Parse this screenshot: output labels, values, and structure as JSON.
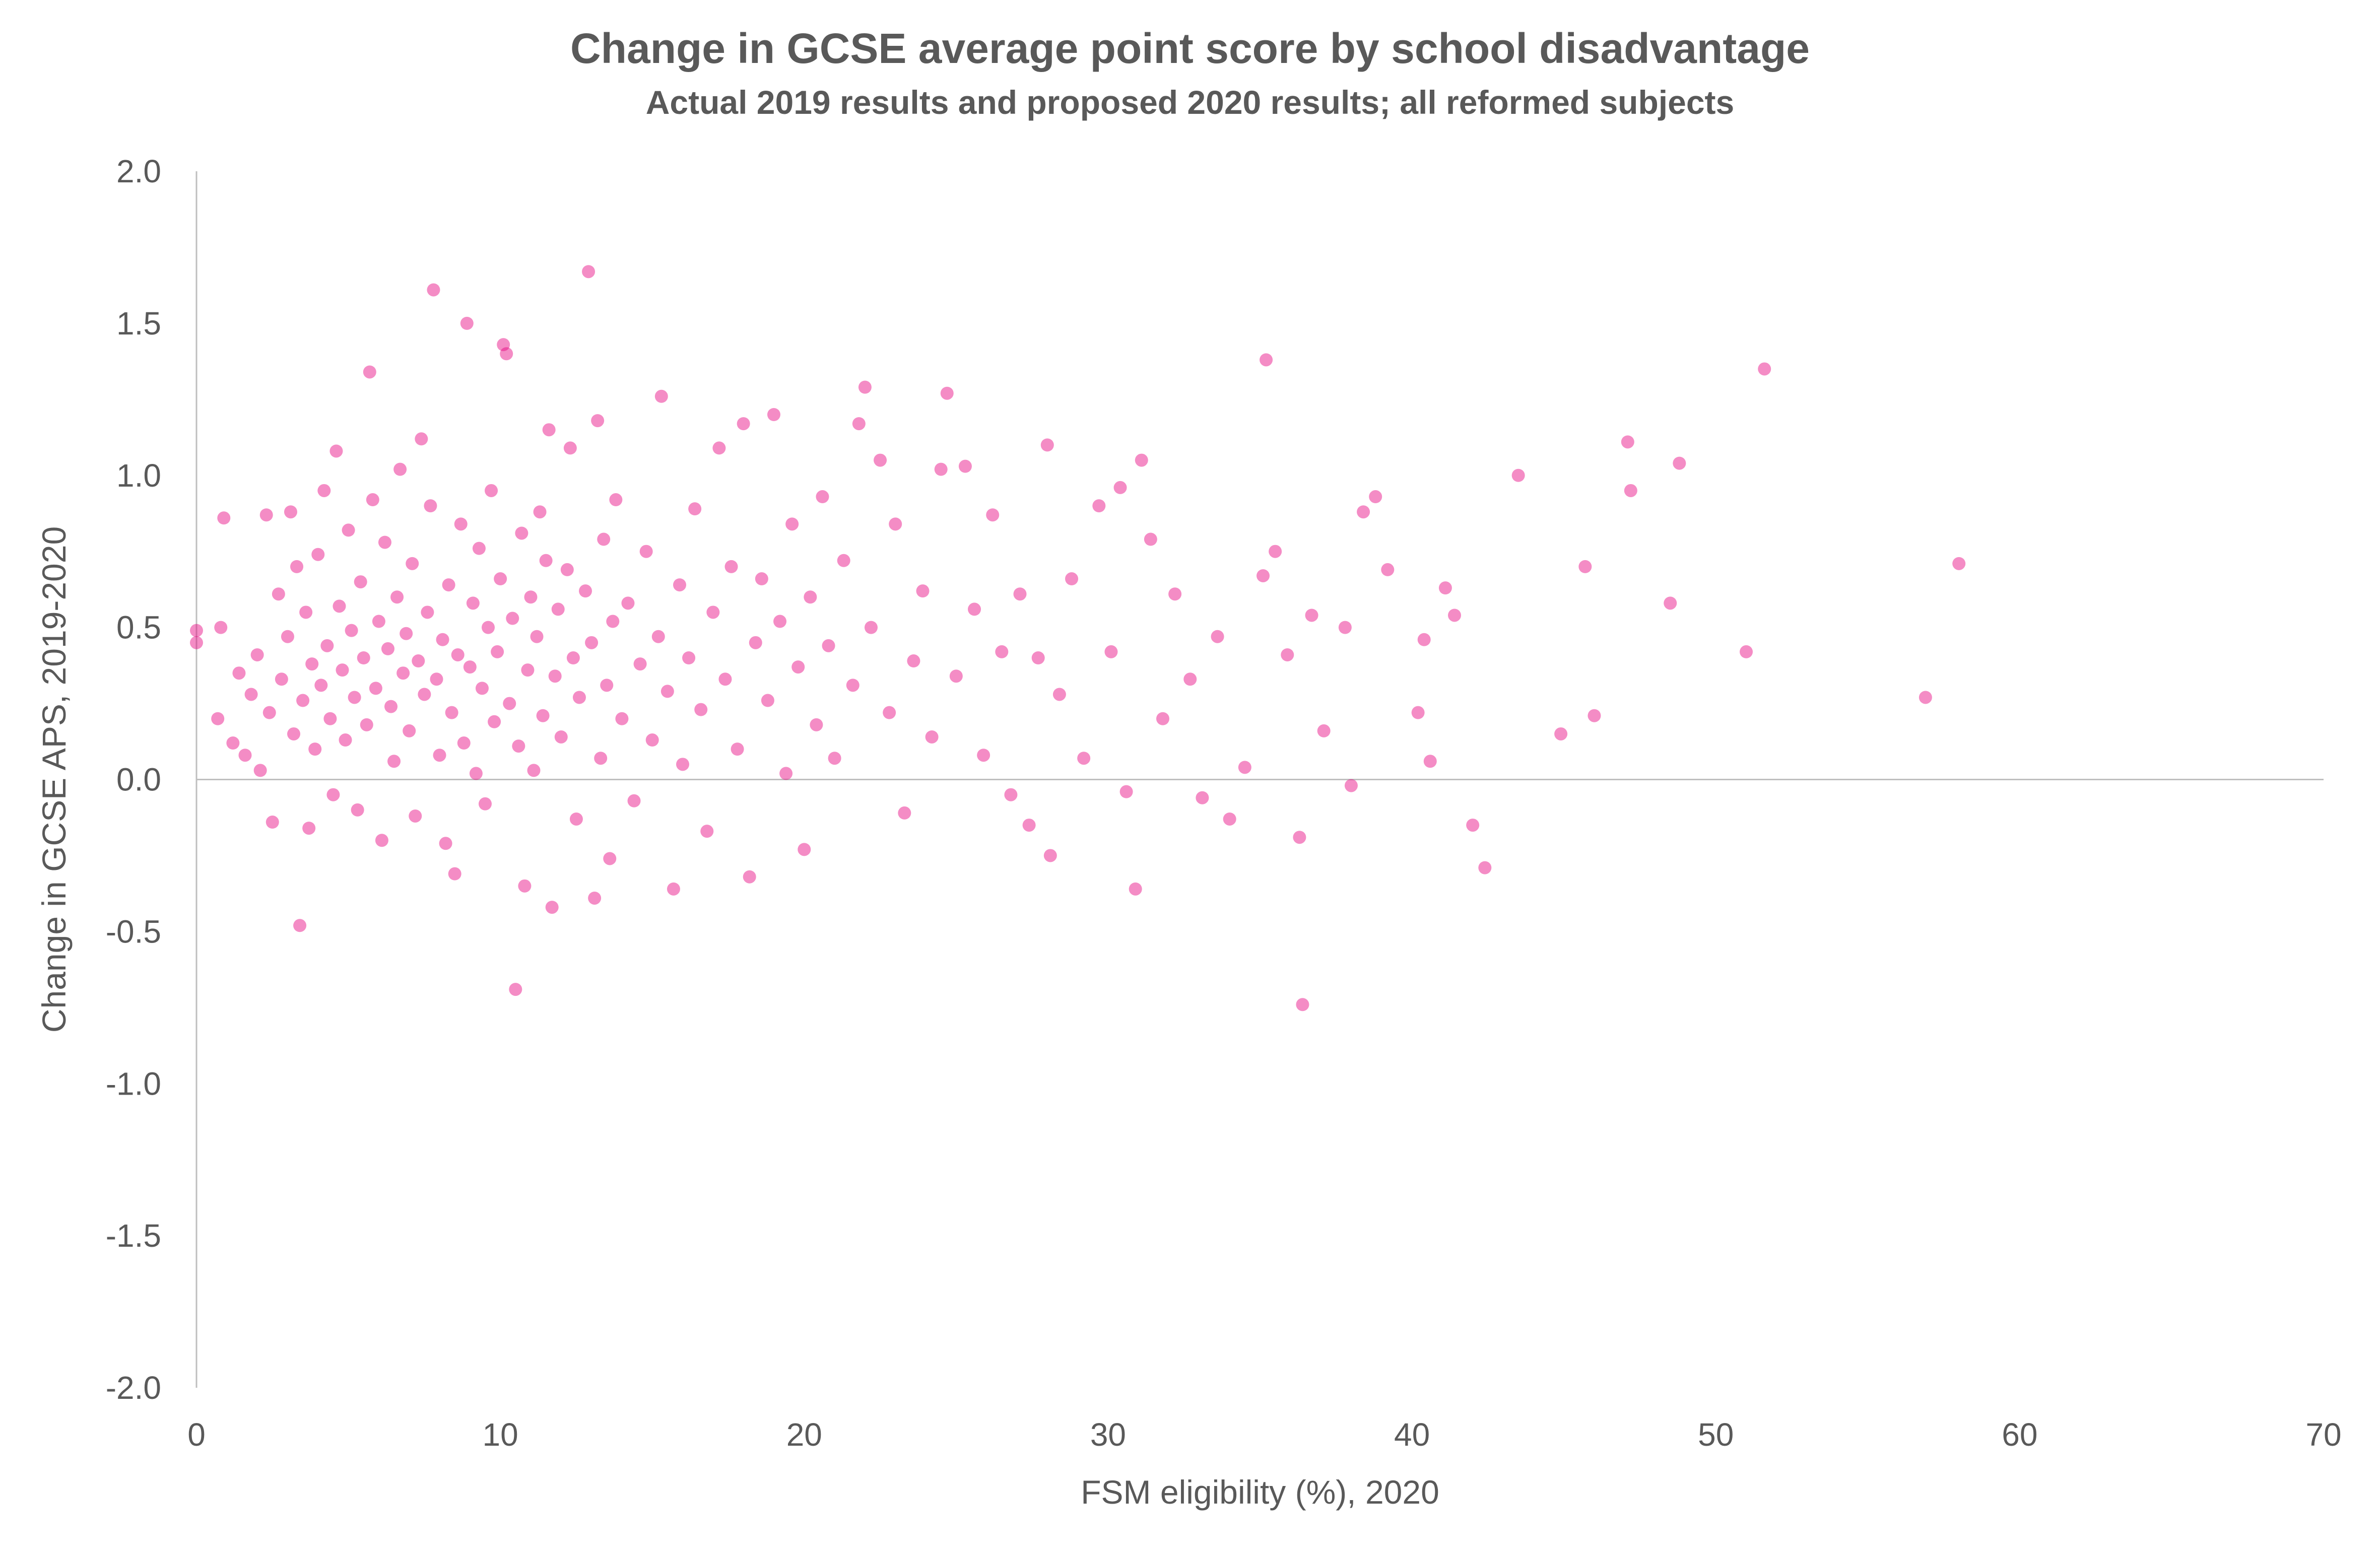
{
  "chart_data": {
    "type": "scatter",
    "title": "Change in GCSE average point score by school disadvantage",
    "subtitle": "Actual 2019 results and proposed 2020 results; all reformed subjects",
    "xlabel": "FSM eligibility (%), 2020",
    "ylabel": "Change in GCSE APS, 2019-2020",
    "xlim": [
      0,
      70
    ],
    "ylim": [
      -2.0,
      2.0
    ],
    "x_ticks": [
      "0",
      "10",
      "20",
      "30",
      "40",
      "50",
      "60",
      "70"
    ],
    "y_ticks": [
      "2.0",
      "1.5",
      "1.0",
      "0.5",
      "0.0",
      "-0.5",
      "-1.0",
      "-1.5",
      "-2.0"
    ],
    "grid": false,
    "legend": "none",
    "point_color": "#E6007E",
    "point_opacity": 0.45,
    "note": "Representative sample of the dense cloud of points; clearly visible outliers recorded individually.",
    "points": [
      {
        "x": 0.0,
        "y": 0.49
      },
      {
        "x": 0.0,
        "y": 0.45
      },
      {
        "x": 0.7,
        "y": 0.2
      },
      {
        "x": 0.8,
        "y": 0.5
      },
      {
        "x": 0.9,
        "y": 0.86
      },
      {
        "x": 1.2,
        "y": 0.12
      },
      {
        "x": 1.4,
        "y": 0.35
      },
      {
        "x": 1.6,
        "y": 0.08
      },
      {
        "x": 1.8,
        "y": 0.28
      },
      {
        "x": 2.0,
        "y": 0.41
      },
      {
        "x": 2.1,
        "y": 0.03
      },
      {
        "x": 2.3,
        "y": 0.87
      },
      {
        "x": 2.4,
        "y": 0.22
      },
      {
        "x": 2.5,
        "y": -0.14
      },
      {
        "x": 2.7,
        "y": 0.61
      },
      {
        "x": 2.8,
        "y": 0.33
      },
      {
        "x": 3.0,
        "y": 0.47
      },
      {
        "x": 3.1,
        "y": 0.88
      },
      {
        "x": 3.2,
        "y": 0.15
      },
      {
        "x": 3.3,
        "y": 0.7
      },
      {
        "x": 3.4,
        "y": -0.48
      },
      {
        "x": 3.5,
        "y": 0.26
      },
      {
        "x": 3.6,
        "y": 0.55
      },
      {
        "x": 3.7,
        "y": -0.16
      },
      {
        "x": 3.8,
        "y": 0.38
      },
      {
        "x": 3.9,
        "y": 0.1
      },
      {
        "x": 4.0,
        "y": 0.74
      },
      {
        "x": 4.1,
        "y": 0.31
      },
      {
        "x": 4.2,
        "y": 0.95
      },
      {
        "x": 4.3,
        "y": 0.44
      },
      {
        "x": 4.4,
        "y": 0.2
      },
      {
        "x": 4.5,
        "y": -0.05
      },
      {
        "x": 4.6,
        "y": 1.08
      },
      {
        "x": 4.7,
        "y": 0.57
      },
      {
        "x": 4.8,
        "y": 0.36
      },
      {
        "x": 4.9,
        "y": 0.13
      },
      {
        "x": 5.0,
        "y": 0.82
      },
      {
        "x": 5.1,
        "y": 0.49
      },
      {
        "x": 5.2,
        "y": 0.27
      },
      {
        "x": 5.3,
        "y": -0.1
      },
      {
        "x": 5.4,
        "y": 0.65
      },
      {
        "x": 5.5,
        "y": 0.4
      },
      {
        "x": 5.6,
        "y": 0.18
      },
      {
        "x": 5.7,
        "y": 1.34
      },
      {
        "x": 5.8,
        "y": 0.92
      },
      {
        "x": 5.9,
        "y": 0.3
      },
      {
        "x": 6.0,
        "y": 0.52
      },
      {
        "x": 6.1,
        "y": -0.2
      },
      {
        "x": 6.2,
        "y": 0.78
      },
      {
        "x": 6.3,
        "y": 0.43
      },
      {
        "x": 6.4,
        "y": 0.24
      },
      {
        "x": 6.5,
        "y": 0.06
      },
      {
        "x": 6.6,
        "y": 0.6
      },
      {
        "x": 6.7,
        "y": 1.02
      },
      {
        "x": 6.8,
        "y": 0.35
      },
      {
        "x": 6.9,
        "y": 0.48
      },
      {
        "x": 7.0,
        "y": 0.16
      },
      {
        "x": 7.1,
        "y": 0.71
      },
      {
        "x": 7.2,
        "y": -0.12
      },
      {
        "x": 7.3,
        "y": 0.39
      },
      {
        "x": 7.4,
        "y": 1.12
      },
      {
        "x": 7.5,
        "y": 0.28
      },
      {
        "x": 7.6,
        "y": 0.55
      },
      {
        "x": 7.7,
        "y": 0.9
      },
      {
        "x": 7.8,
        "y": 1.61
      },
      {
        "x": 7.9,
        "y": 0.33
      },
      {
        "x": 8.0,
        "y": 0.08
      },
      {
        "x": 8.1,
        "y": 0.46
      },
      {
        "x": 8.2,
        "y": -0.21
      },
      {
        "x": 8.3,
        "y": 0.64
      },
      {
        "x": 8.4,
        "y": 0.22
      },
      {
        "x": 8.5,
        "y": -0.31
      },
      {
        "x": 8.6,
        "y": 0.41
      },
      {
        "x": 8.7,
        "y": 0.84
      },
      {
        "x": 8.8,
        "y": 0.12
      },
      {
        "x": 8.9,
        "y": 1.5
      },
      {
        "x": 9.0,
        "y": 0.37
      },
      {
        "x": 9.1,
        "y": 0.58
      },
      {
        "x": 9.2,
        "y": 0.02
      },
      {
        "x": 9.3,
        "y": 0.76
      },
      {
        "x": 9.4,
        "y": 0.3
      },
      {
        "x": 9.5,
        "y": -0.08
      },
      {
        "x": 9.6,
        "y": 0.5
      },
      {
        "x": 9.7,
        "y": 0.95
      },
      {
        "x": 9.8,
        "y": 0.19
      },
      {
        "x": 9.9,
        "y": 0.42
      },
      {
        "x": 10.0,
        "y": 0.66
      },
      {
        "x": 10.1,
        "y": 1.43
      },
      {
        "x": 10.2,
        "y": 1.4
      },
      {
        "x": 10.3,
        "y": 0.25
      },
      {
        "x": 10.4,
        "y": 0.53
      },
      {
        "x": 10.5,
        "y": -0.69
      },
      {
        "x": 10.6,
        "y": 0.11
      },
      {
        "x": 10.7,
        "y": 0.81
      },
      {
        "x": 10.8,
        "y": -0.35
      },
      {
        "x": 10.9,
        "y": 0.36
      },
      {
        "x": 11.0,
        "y": 0.6
      },
      {
        "x": 11.1,
        "y": 0.03
      },
      {
        "x": 11.2,
        "y": 0.47
      },
      {
        "x": 11.3,
        "y": 0.88
      },
      {
        "x": 11.4,
        "y": 0.21
      },
      {
        "x": 11.5,
        "y": 0.72
      },
      {
        "x": 11.6,
        "y": 1.15
      },
      {
        "x": 11.7,
        "y": -0.42
      },
      {
        "x": 11.8,
        "y": 0.34
      },
      {
        "x": 11.9,
        "y": 0.56
      },
      {
        "x": 12.0,
        "y": 0.14
      },
      {
        "x": 12.2,
        "y": 0.69
      },
      {
        "x": 12.3,
        "y": 1.09
      },
      {
        "x": 12.4,
        "y": 0.4
      },
      {
        "x": 12.5,
        "y": -0.13
      },
      {
        "x": 12.6,
        "y": 0.27
      },
      {
        "x": 12.8,
        "y": 0.62
      },
      {
        "x": 12.9,
        "y": 1.67
      },
      {
        "x": 13.0,
        "y": 0.45
      },
      {
        "x": 13.1,
        "y": -0.39
      },
      {
        "x": 13.2,
        "y": 1.18
      },
      {
        "x": 13.3,
        "y": 0.07
      },
      {
        "x": 13.4,
        "y": 0.79
      },
      {
        "x": 13.5,
        "y": 0.31
      },
      {
        "x": 13.6,
        "y": -0.26
      },
      {
        "x": 13.7,
        "y": 0.52
      },
      {
        "x": 13.8,
        "y": 0.92
      },
      {
        "x": 14.0,
        "y": 0.2
      },
      {
        "x": 14.2,
        "y": 0.58
      },
      {
        "x": 14.4,
        "y": -0.07
      },
      {
        "x": 14.6,
        "y": 0.38
      },
      {
        "x": 14.8,
        "y": 0.75
      },
      {
        "x": 15.0,
        "y": 0.13
      },
      {
        "x": 15.2,
        "y": 0.47
      },
      {
        "x": 15.3,
        "y": 1.26
      },
      {
        "x": 15.5,
        "y": 0.29
      },
      {
        "x": 15.7,
        "y": -0.36
      },
      {
        "x": 15.9,
        "y": 0.64
      },
      {
        "x": 16.0,
        "y": 0.05
      },
      {
        "x": 16.2,
        "y": 0.4
      },
      {
        "x": 16.4,
        "y": 0.89
      },
      {
        "x": 16.6,
        "y": 0.23
      },
      {
        "x": 16.8,
        "y": -0.17
      },
      {
        "x": 17.0,
        "y": 0.55
      },
      {
        "x": 17.2,
        "y": 1.09
      },
      {
        "x": 17.4,
        "y": 0.33
      },
      {
        "x": 17.6,
        "y": 0.7
      },
      {
        "x": 17.8,
        "y": 0.1
      },
      {
        "x": 18.0,
        "y": 1.17
      },
      {
        "x": 18.2,
        "y": -0.32
      },
      {
        "x": 18.4,
        "y": 0.45
      },
      {
        "x": 18.6,
        "y": 0.66
      },
      {
        "x": 18.8,
        "y": 0.26
      },
      {
        "x": 19.0,
        "y": 1.2
      },
      {
        "x": 19.2,
        "y": 0.52
      },
      {
        "x": 19.4,
        "y": 0.02
      },
      {
        "x": 19.6,
        "y": 0.84
      },
      {
        "x": 19.8,
        "y": 0.37
      },
      {
        "x": 20.0,
        "y": -0.23
      },
      {
        "x": 20.2,
        "y": 0.6
      },
      {
        "x": 20.4,
        "y": 0.18
      },
      {
        "x": 20.6,
        "y": 0.93
      },
      {
        "x": 20.8,
        "y": 0.44
      },
      {
        "x": 21.0,
        "y": 0.07
      },
      {
        "x": 21.3,
        "y": 0.72
      },
      {
        "x": 21.6,
        "y": 0.31
      },
      {
        "x": 21.8,
        "y": 1.17
      },
      {
        "x": 22.0,
        "y": 1.29
      },
      {
        "x": 22.2,
        "y": 0.5
      },
      {
        "x": 22.5,
        "y": 1.05
      },
      {
        "x": 22.8,
        "y": 0.22
      },
      {
        "x": 23.0,
        "y": 0.84
      },
      {
        "x": 23.3,
        "y": -0.11
      },
      {
        "x": 23.6,
        "y": 0.39
      },
      {
        "x": 23.9,
        "y": 0.62
      },
      {
        "x": 24.2,
        "y": 0.14
      },
      {
        "x": 24.5,
        "y": 1.02
      },
      {
        "x": 24.7,
        "y": 1.27
      },
      {
        "x": 25.0,
        "y": 0.34
      },
      {
        "x": 25.3,
        "y": 1.03
      },
      {
        "x": 25.6,
        "y": 0.56
      },
      {
        "x": 25.9,
        "y": 0.08
      },
      {
        "x": 26.2,
        "y": 0.87
      },
      {
        "x": 26.5,
        "y": 0.42
      },
      {
        "x": 26.8,
        "y": -0.05
      },
      {
        "x": 27.1,
        "y": 0.61
      },
      {
        "x": 27.4,
        "y": -0.15
      },
      {
        "x": 27.7,
        "y": 0.4
      },
      {
        "x": 28.0,
        "y": 1.1
      },
      {
        "x": 28.1,
        "y": -0.25
      },
      {
        "x": 28.4,
        "y": 0.28
      },
      {
        "x": 28.8,
        "y": 0.66
      },
      {
        "x": 29.2,
        "y": 0.07
      },
      {
        "x": 29.7,
        "y": 0.9
      },
      {
        "x": 30.1,
        "y": 0.42
      },
      {
        "x": 30.4,
        "y": 0.96
      },
      {
        "x": 30.6,
        "y": -0.04
      },
      {
        "x": 30.9,
        "y": -0.36
      },
      {
        "x": 31.1,
        "y": 1.05
      },
      {
        "x": 31.4,
        "y": 0.79
      },
      {
        "x": 31.8,
        "y": 0.2
      },
      {
        "x": 32.2,
        "y": 0.61
      },
      {
        "x": 32.7,
        "y": 0.33
      },
      {
        "x": 33.1,
        "y": -0.06
      },
      {
        "x": 33.6,
        "y": 0.47
      },
      {
        "x": 34.0,
        "y": -0.13
      },
      {
        "x": 34.5,
        "y": 0.04
      },
      {
        "x": 35.1,
        "y": 0.67
      },
      {
        "x": 35.2,
        "y": 1.38
      },
      {
        "x": 35.5,
        "y": 0.75
      },
      {
        "x": 35.9,
        "y": 0.41
      },
      {
        "x": 36.3,
        "y": -0.19
      },
      {
        "x": 36.4,
        "y": -0.74
      },
      {
        "x": 36.7,
        "y": 0.54
      },
      {
        "x": 37.1,
        "y": 0.16
      },
      {
        "x": 37.8,
        "y": 0.5
      },
      {
        "x": 38.0,
        "y": -0.02
      },
      {
        "x": 38.4,
        "y": 0.88
      },
      {
        "x": 38.8,
        "y": 0.93
      },
      {
        "x": 39.2,
        "y": 0.69
      },
      {
        "x": 40.2,
        "y": 0.22
      },
      {
        "x": 40.4,
        "y": 0.46
      },
      {
        "x": 40.6,
        "y": 0.06
      },
      {
        "x": 41.1,
        "y": 0.63
      },
      {
        "x": 41.4,
        "y": 0.54
      },
      {
        "x": 42.0,
        "y": -0.15
      },
      {
        "x": 42.4,
        "y": -0.29
      },
      {
        "x": 43.5,
        "y": 1.0
      },
      {
        "x": 44.9,
        "y": 0.15
      },
      {
        "x": 45.7,
        "y": 0.7
      },
      {
        "x": 46.0,
        "y": 0.21
      },
      {
        "x": 47.1,
        "y": 1.11
      },
      {
        "x": 47.2,
        "y": 0.95
      },
      {
        "x": 48.5,
        "y": 0.58
      },
      {
        "x": 48.8,
        "y": 1.04
      },
      {
        "x": 51.0,
        "y": 0.42
      },
      {
        "x": 51.6,
        "y": 1.35
      },
      {
        "x": 56.9,
        "y": 0.27
      },
      {
        "x": 58.0,
        "y": 0.71
      }
    ]
  }
}
